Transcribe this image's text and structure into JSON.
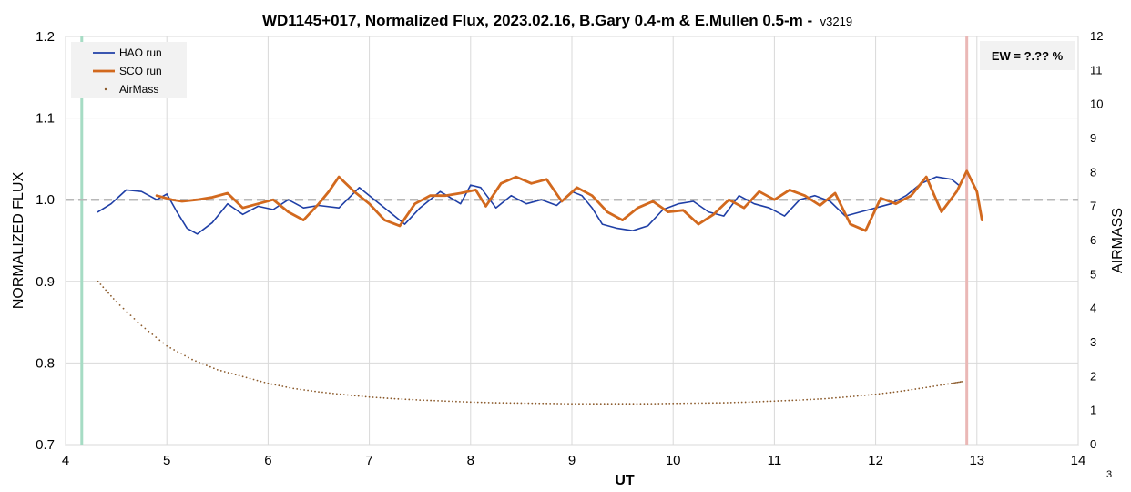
{
  "chart_data": {
    "type": "line",
    "title": "WD1145+017, Normalized Flux, 2023.02.16, B.Gary 0.4-m & E.Mullen 0.5-m -",
    "title_suffix": "v3219",
    "xlabel": "UT",
    "ylabel": "NORMALIZED FLUX",
    "y2label": "AIRMASS",
    "xlim": [
      4,
      14
    ],
    "ylim": [
      0.7,
      1.2
    ],
    "y2lim": [
      0,
      12
    ],
    "x_ticks": [
      "4",
      "5",
      "6",
      "7",
      "8",
      "9",
      "10",
      "11",
      "12",
      "13",
      "14"
    ],
    "y_ticks": [
      "0.7",
      "0.8",
      "0.9",
      "1.0",
      "1.1",
      "1.2"
    ],
    "y2_ticks": [
      "0",
      "1",
      "2",
      "3",
      "4",
      "5",
      "6",
      "7",
      "8",
      "9",
      "10",
      "11",
      "12"
    ],
    "grid": true,
    "legend_position": "top-left",
    "reference_line": 1.0,
    "vertical_markers": [
      {
        "x": 4.16,
        "color": "#a6dcc4"
      },
      {
        "x": 12.9,
        "color": "#eab8b6"
      }
    ],
    "annotation": "EW = ?.?? %",
    "page_number": "3",
    "series": [
      {
        "name": "HAO run",
        "color": "#1f3fa6",
        "x": [
          4.32,
          4.45,
          4.6,
          4.75,
          4.9,
          5.0,
          5.1,
          5.2,
          5.3,
          5.45,
          5.6,
          5.75,
          5.9,
          6.05,
          6.2,
          6.35,
          6.5,
          6.7,
          6.9,
          7.05,
          7.2,
          7.35,
          7.5,
          7.7,
          7.9,
          8.0,
          8.1,
          8.25,
          8.4,
          8.55,
          8.7,
          8.85,
          9.0,
          9.1,
          9.2,
          9.3,
          9.45,
          9.6,
          9.75,
          9.9,
          10.05,
          10.2,
          10.35,
          10.5,
          10.65,
          10.8,
          10.95,
          11.1,
          11.25,
          11.4,
          11.55,
          11.7,
          11.85,
          12.0,
          12.15,
          12.3,
          12.45,
          12.6,
          12.75,
          12.82
        ],
        "values": [
          0.985,
          0.995,
          1.012,
          1.01,
          1.0,
          1.007,
          0.985,
          0.965,
          0.958,
          0.972,
          0.995,
          0.982,
          0.992,
          0.988,
          1.0,
          0.99,
          0.993,
          0.99,
          1.015,
          1.0,
          0.985,
          0.97,
          0.99,
          1.01,
          0.995,
          1.018,
          1.015,
          0.99,
          1.005,
          0.995,
          1.0,
          0.993,
          1.01,
          1.005,
          0.99,
          0.97,
          0.965,
          0.962,
          0.968,
          0.988,
          0.995,
          0.998,
          0.985,
          0.98,
          1.005,
          0.995,
          0.99,
          0.98,
          1.0,
          1.005,
          0.998,
          0.98,
          0.985,
          0.99,
          0.995,
          1.005,
          1.02,
          1.028,
          1.025,
          1.018
        ]
      },
      {
        "name": "SCO run",
        "color": "#d2691e",
        "x": [
          4.9,
          5.05,
          5.15,
          5.3,
          5.45,
          5.6,
          5.75,
          5.9,
          6.05,
          6.2,
          6.35,
          6.5,
          6.6,
          6.7,
          6.85,
          7.0,
          7.15,
          7.3,
          7.45,
          7.6,
          7.75,
          7.9,
          8.05,
          8.15,
          8.3,
          8.45,
          8.6,
          8.75,
          8.9,
          9.05,
          9.2,
          9.35,
          9.5,
          9.65,
          9.8,
          9.95,
          10.1,
          10.25,
          10.4,
          10.55,
          10.7,
          10.85,
          11.0,
          11.15,
          11.3,
          11.45,
          11.6,
          11.75,
          11.9,
          12.05,
          12.2,
          12.35,
          12.5,
          12.65,
          12.8,
          12.9,
          13.0,
          13.05
        ],
        "values": [
          1.005,
          1.0,
          0.998,
          1.0,
          1.003,
          1.008,
          0.99,
          0.995,
          1.0,
          0.985,
          0.975,
          0.995,
          1.01,
          1.028,
          1.01,
          0.995,
          0.975,
          0.968,
          0.995,
          1.005,
          1.005,
          1.008,
          1.012,
          0.992,
          1.02,
          1.028,
          1.02,
          1.025,
          0.998,
          1.015,
          1.005,
          0.985,
          0.975,
          0.99,
          0.998,
          0.985,
          0.987,
          0.97,
          0.982,
          1.0,
          0.99,
          1.01,
          1.0,
          1.012,
          1.005,
          0.993,
          1.008,
          0.97,
          0.962,
          1.002,
          0.995,
          1.005,
          1.028,
          0.985,
          1.01,
          1.035,
          1.01,
          0.975
        ]
      },
      {
        "name": "AirMass",
        "color": "#8b5a2b",
        "axis": "right",
        "x": [
          4.32,
          4.5,
          4.75,
          5.0,
          5.25,
          5.5,
          5.75,
          6.0,
          6.25,
          6.5,
          6.75,
          7.0,
          7.25,
          7.5,
          7.75,
          8.0,
          8.25,
          8.5,
          8.75,
          9.0,
          9.25,
          9.5,
          9.75,
          10.0,
          10.25,
          10.5,
          10.75,
          11.0,
          11.25,
          11.5,
          11.75,
          12.0,
          12.25,
          12.5,
          12.75,
          12.85
        ],
        "values": [
          4.8,
          4.2,
          3.5,
          2.9,
          2.5,
          2.2,
          2.0,
          1.8,
          1.65,
          1.55,
          1.47,
          1.4,
          1.35,
          1.31,
          1.28,
          1.25,
          1.23,
          1.22,
          1.21,
          1.2,
          1.2,
          1.2,
          1.2,
          1.21,
          1.22,
          1.23,
          1.25,
          1.28,
          1.31,
          1.35,
          1.41,
          1.48,
          1.57,
          1.68,
          1.8,
          1.85
        ]
      }
    ]
  }
}
